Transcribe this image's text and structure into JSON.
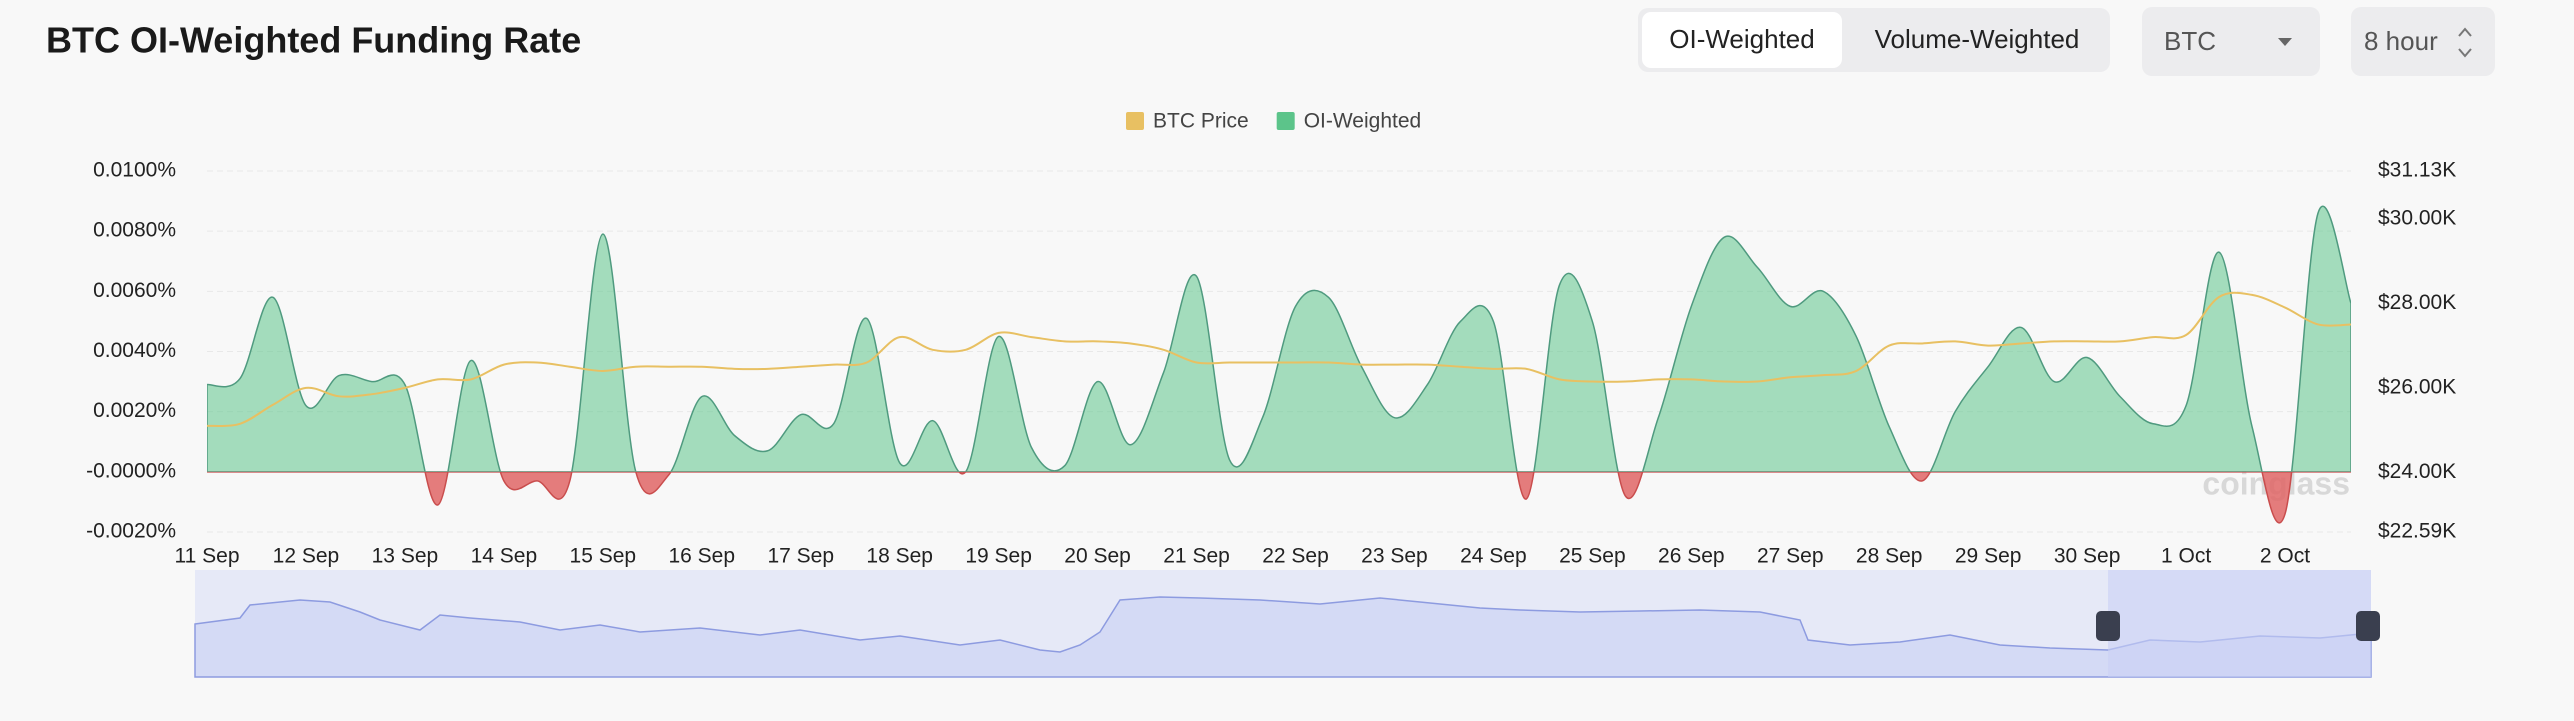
{
  "header": {
    "title": "BTC OI-Weighted Funding Rate",
    "tabs": [
      "OI-Weighted",
      "Volume-Weighted"
    ],
    "symbol": "BTC",
    "interval": "8 hour"
  },
  "chart_data": {
    "type": "area",
    "categories": [
      "11 Sep",
      null,
      null,
      "12 Sep",
      null,
      null,
      "13 Sep",
      null,
      null,
      "14 Sep",
      null,
      null,
      "15 Sep",
      null,
      null,
      "16 Sep",
      null,
      null,
      "17 Sep",
      null,
      null,
      "18 Sep",
      null,
      null,
      "19 Sep",
      null,
      null,
      "20 Sep",
      null,
      null,
      "21 Sep",
      null,
      null,
      "22 Sep",
      null,
      null,
      "23 Sep",
      null,
      null,
      "24 Sep",
      null,
      null,
      "25 Sep",
      null,
      null,
      "26 Sep",
      null,
      null,
      "27 Sep",
      null,
      null,
      "28 Sep",
      null,
      null,
      "29 Sep",
      null,
      null,
      "30 Sep",
      null,
      null,
      "1 Oct",
      null,
      null,
      "2 Oct",
      null,
      null
    ],
    "series": [
      {
        "name": "BTC Price",
        "color": "#e8c062",
        "axis": "y2",
        "values": [
          25100,
          25150,
          25600,
          26000,
          25800,
          25850,
          26000,
          26200,
          26200,
          26550,
          26600,
          26500,
          26400,
          26500,
          26500,
          26500,
          26450,
          26450,
          26500,
          26550,
          26600,
          27200,
          26900,
          26900,
          27300,
          27200,
          27100,
          27100,
          27050,
          26900,
          26600,
          26600,
          26600,
          26600,
          26600,
          26550,
          26550,
          26550,
          26500,
          26450,
          26450,
          26200,
          26150,
          26150,
          26200,
          26200,
          26150,
          26150,
          26250,
          26300,
          26400,
          27000,
          27050,
          27100,
          27000,
          27050,
          27100,
          27100,
          27100,
          27200,
          27250,
          28150,
          28200,
          27900,
          27500,
          27500
        ]
      },
      {
        "name": "OI-Weighted",
        "color": "#5cc48a",
        "negative_color": "#e06666",
        "values": [
          0.0029,
          0.0031,
          0.0058,
          0.0022,
          0.0032,
          0.003,
          0.0029,
          -0.0011,
          0.0037,
          -0.0003,
          -0.0003,
          -0.0003,
          0.0079,
          0.0,
          -0.0001,
          0.0025,
          0.0012,
          0.0007,
          0.0019,
          0.0016,
          0.0051,
          0.0003,
          0.0017,
          0.0,
          0.0045,
          0.0008,
          0.0002,
          0.003,
          0.0009,
          0.0033,
          0.0065,
          0.0004,
          0.0018,
          0.0055,
          0.0058,
          0.0035,
          0.0018,
          0.0029,
          0.005,
          0.005,
          -0.0009,
          0.0062,
          0.005,
          -0.0008,
          0.0018,
          0.0055,
          0.0078,
          0.0068,
          0.0055,
          0.006,
          0.0045,
          0.0015,
          -0.0003,
          0.002,
          0.0035,
          0.0048,
          0.003,
          0.0038,
          0.0025,
          0.0016,
          0.0022,
          0.0073,
          0.0015,
          -0.0014,
          0.0086,
          0.0056
        ]
      }
    ],
    "ylim": [
      -0.002,
      0.01
    ],
    "yticks": [
      {
        "value": 0.01,
        "label": "0.0100%"
      },
      {
        "value": 0.008,
        "label": "0.0080%"
      },
      {
        "value": 0.006,
        "label": "0.0060%"
      },
      {
        "value": 0.004,
        "label": "0.0040%"
      },
      {
        "value": 0.002,
        "label": "0.0020%"
      },
      {
        "value": 0,
        "label": "-0.0000%"
      },
      {
        "value": -0.002,
        "label": "-0.0020%"
      }
    ],
    "y2lim": [
      22590,
      31130
    ],
    "y2ticks": [
      {
        "value": 31130,
        "label": "$31.13K"
      },
      {
        "value": 30000,
        "label": "$30.00K"
      },
      {
        "value": 28000,
        "label": "$28.00K"
      },
      {
        "value": 26000,
        "label": "$26.00K"
      },
      {
        "value": 24000,
        "label": "$24.00K"
      },
      {
        "value": 22590,
        "label": "$22.59K"
      }
    ],
    "grid": true,
    "legend": "top",
    "watermark": "coinglass"
  }
}
